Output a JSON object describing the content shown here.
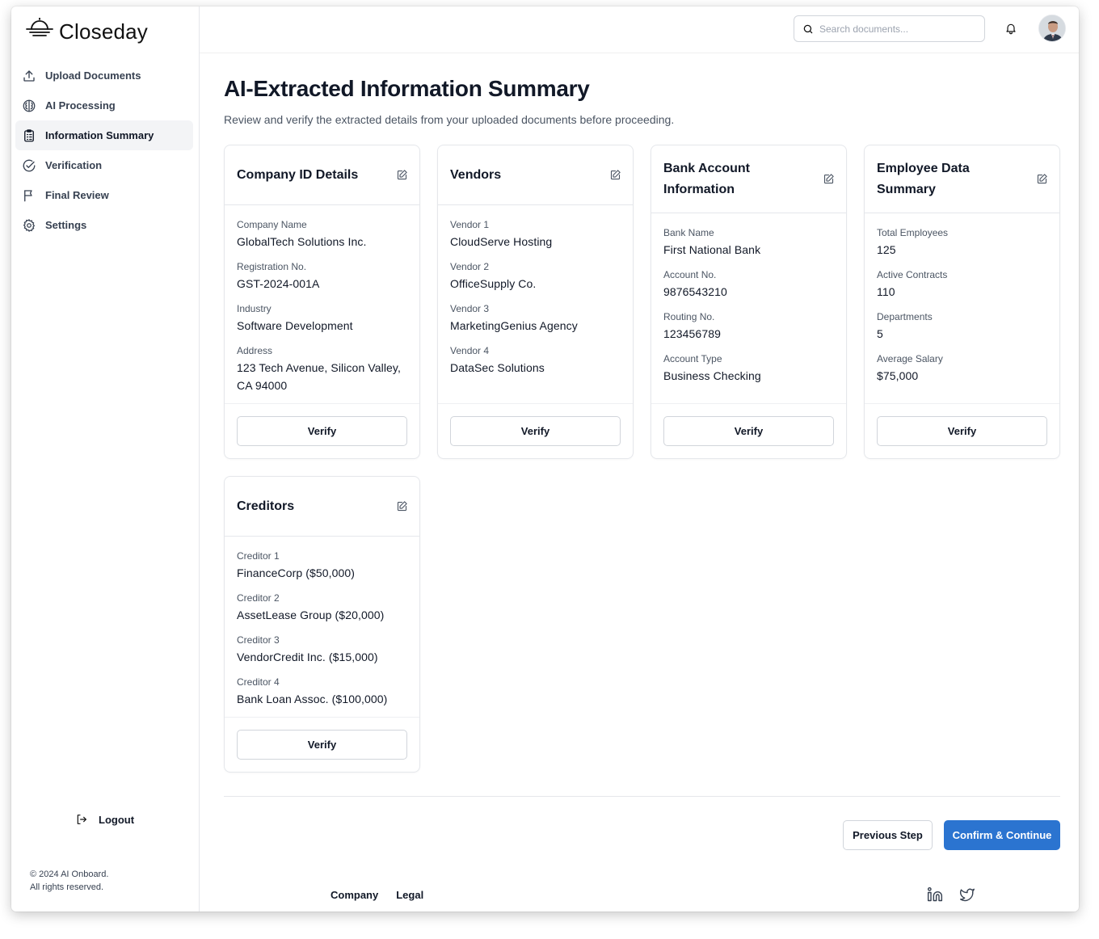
{
  "brand": {
    "name": "Closeday",
    "logo_icon": "sun-horizon-logo-icon"
  },
  "sidebar": {
    "items": [
      {
        "label": "Upload Documents",
        "icon": "upload-icon",
        "active": false
      },
      {
        "label": "AI Processing",
        "icon": "brain-icon",
        "active": false
      },
      {
        "label": "Information Summary",
        "icon": "clipboard-list-icon",
        "active": true
      },
      {
        "label": "Verification",
        "icon": "check-circle-icon",
        "active": false
      },
      {
        "label": "Final Review",
        "icon": "flag-icon",
        "active": false
      },
      {
        "label": "Settings",
        "icon": "gear-icon",
        "active": false
      }
    ],
    "logout_label": "Logout",
    "copyright_line1": "© 2024 AI Onboard.",
    "copyright_line2": "All rights reserved."
  },
  "header": {
    "search_placeholder": "Search documents...",
    "bell_icon": "bell-icon",
    "avatar_icon": "user-avatar"
  },
  "page": {
    "title": "AI-Extracted Information Summary",
    "subtitle": "Review and verify the extracted details from your uploaded documents before proceeding."
  },
  "cards": [
    {
      "title": "Company ID Details",
      "fields": [
        {
          "label": "Company Name",
          "value": "GlobalTech Solutions Inc."
        },
        {
          "label": "Registration No.",
          "value": "GST-2024-001A"
        },
        {
          "label": "Industry",
          "value": "Software Development"
        },
        {
          "label": "Address",
          "value": "123 Tech Avenue, Silicon Valley, CA 94000"
        }
      ],
      "verify_label": "Verify"
    },
    {
      "title": "Vendors",
      "fields": [
        {
          "label": "Vendor 1",
          "value": "CloudServe Hosting"
        },
        {
          "label": "Vendor 2",
          "value": "OfficeSupply Co."
        },
        {
          "label": "Vendor 3",
          "value": "MarketingGenius Agency"
        },
        {
          "label": "Vendor 4",
          "value": "DataSec Solutions"
        }
      ],
      "verify_label": "Verify"
    },
    {
      "title": "Bank Account Information",
      "fields": [
        {
          "label": "Bank Name",
          "value": "First National Bank"
        },
        {
          "label": "Account No.",
          "value": "9876543210"
        },
        {
          "label": "Routing No.",
          "value": "123456789"
        },
        {
          "label": "Account Type",
          "value": "Business Checking"
        }
      ],
      "verify_label": "Verify"
    },
    {
      "title": "Employee Data Summary",
      "fields": [
        {
          "label": "Total Employees",
          "value": "125"
        },
        {
          "label": "Active Contracts",
          "value": "110"
        },
        {
          "label": "Departments",
          "value": "5"
        },
        {
          "label": "Average Salary",
          "value": "$75,000"
        }
      ],
      "verify_label": "Verify"
    },
    {
      "title": "Creditors",
      "fields": [
        {
          "label": "Creditor 1",
          "value": "FinanceCorp ($50,000)"
        },
        {
          "label": "Creditor 2",
          "value": "AssetLease Group ($20,000)"
        },
        {
          "label": "Creditor 3",
          "value": "VendorCredit Inc. ($15,000)"
        },
        {
          "label": "Creditor 4",
          "value": "Bank Loan Assoc. ($100,000)"
        }
      ],
      "verify_label": "Verify"
    }
  ],
  "actions": {
    "previous_label": "Previous Step",
    "confirm_label": "Confirm & Continue",
    "confirm_color": "#2b74d0"
  },
  "footer": {
    "links": [
      "Company",
      "Legal"
    ],
    "social": [
      "linkedin-icon",
      "twitter-icon"
    ]
  }
}
